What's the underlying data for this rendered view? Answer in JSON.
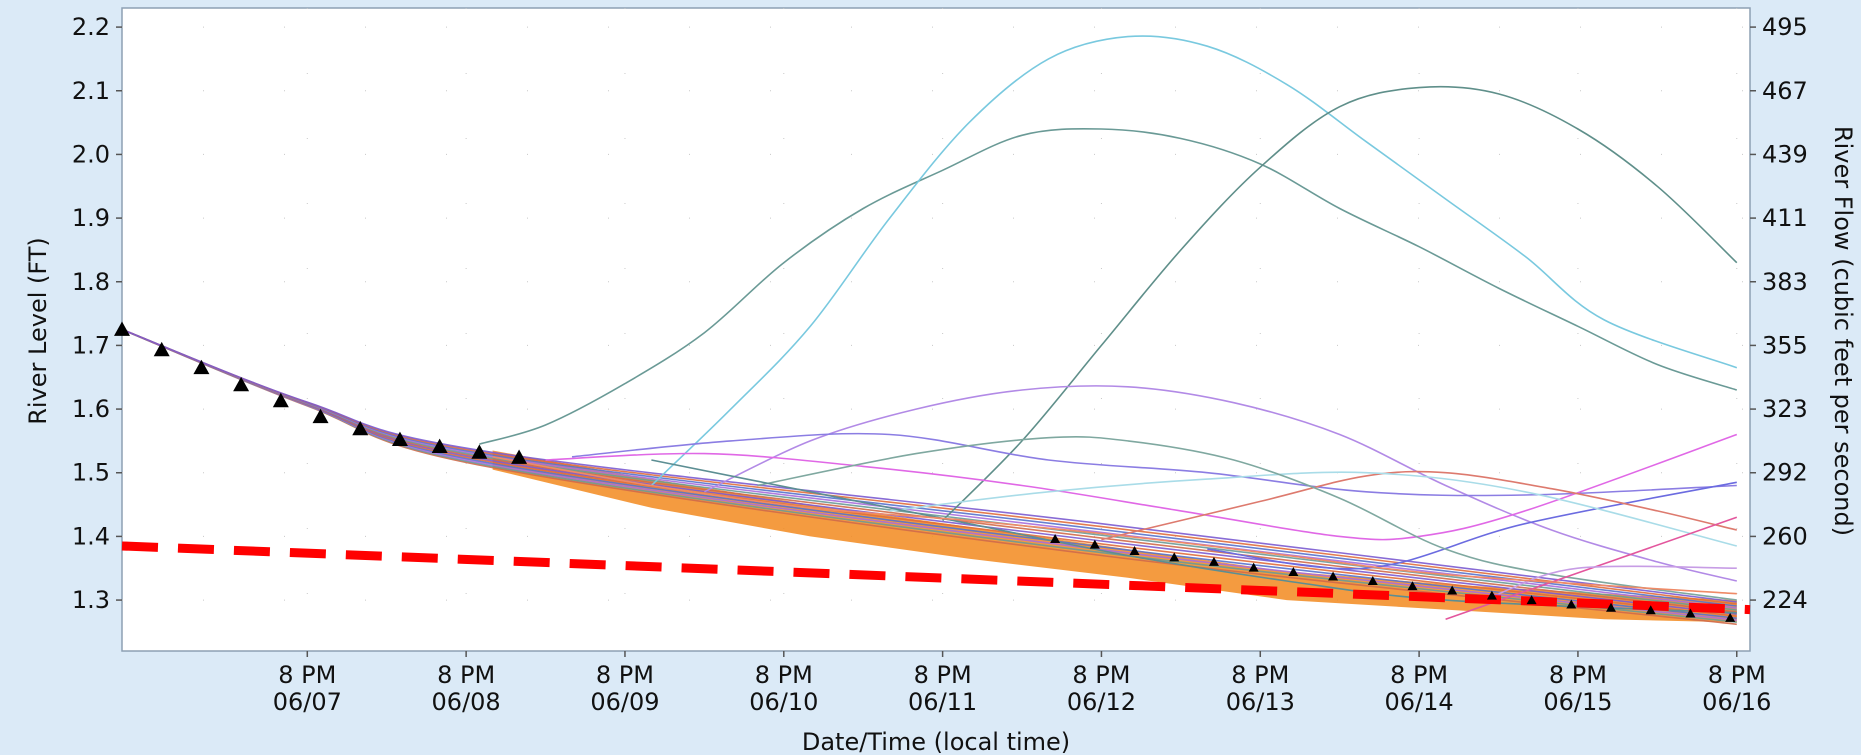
{
  "chart_data": {
    "type": "line",
    "xlabel": "Date/Time (local time)",
    "ylabel_left": "River Level (FT)",
    "ylabel_right": "River Flow (cubic feet per second)",
    "xlim": [
      "2020-06-06T16:00",
      "2020-06-16T22:00"
    ],
    "ylim": [
      1.22,
      2.23
    ],
    "x_ticks": [
      {
        "x": "2020-06-07T20:00",
        "time": "8 PM",
        "date": "06/07"
      },
      {
        "x": "2020-06-08T20:00",
        "time": "8 PM",
        "date": "06/08"
      },
      {
        "x": "2020-06-09T20:00",
        "time": "8 PM",
        "date": "06/09"
      },
      {
        "x": "2020-06-10T20:00",
        "time": "8 PM",
        "date": "06/10"
      },
      {
        "x": "2020-06-11T20:00",
        "time": "8 PM",
        "date": "06/11"
      },
      {
        "x": "2020-06-12T20:00",
        "time": "8 PM",
        "date": "06/12"
      },
      {
        "x": "2020-06-13T20:00",
        "time": "8 PM",
        "date": "06/13"
      },
      {
        "x": "2020-06-14T20:00",
        "time": "8 PM",
        "date": "06/14"
      },
      {
        "x": "2020-06-15T20:00",
        "time": "8 PM",
        "date": "06/15"
      },
      {
        "x": "2020-06-16T20:00",
        "time": "8 PM",
        "date": "06/16"
      }
    ],
    "y_ticks_left": [
      "1.3",
      "1.4",
      "1.5",
      "1.6",
      "1.7",
      "1.8",
      "1.9",
      "2.0",
      "2.1",
      "2.2"
    ],
    "y_ticks_right": [
      {
        "level": 1.3,
        "label": "224"
      },
      {
        "level": 1.4,
        "label": "260"
      },
      {
        "level": 1.5,
        "label": "292"
      },
      {
        "level": 1.6,
        "label": "323"
      },
      {
        "level": 1.7,
        "label": "355"
      },
      {
        "level": 1.8,
        "label": "383"
      },
      {
        "level": 1.9,
        "label": "411"
      },
      {
        "level": 2.0,
        "label": "439"
      },
      {
        "level": 2.1,
        "label": "467"
      },
      {
        "level": 2.2,
        "label": "495"
      }
    ],
    "grid": "dotted",
    "threshold": {
      "color": "#ff0000",
      "style": "dashed",
      "points": [
        [
          "2020-06-06T16:00",
          1.385
        ],
        [
          "2020-06-16T22:00",
          1.285
        ]
      ]
    },
    "band": {
      "color": "#f2891f",
      "upper": [
        [
          "2020-06-09T00:00",
          1.535
        ],
        [
          "2020-06-10T00:00",
          1.49
        ],
        [
          "2020-06-11T00:00",
          1.45
        ],
        [
          "2020-06-12T00:00",
          1.415
        ],
        [
          "2020-06-13T00:00",
          1.38
        ],
        [
          "2020-06-14T00:00",
          1.345
        ],
        [
          "2020-06-15T00:00",
          1.325
        ],
        [
          "2020-06-16T00:00",
          1.31
        ],
        [
          "2020-06-16T20:00",
          1.3
        ]
      ],
      "lower": [
        [
          "2020-06-16T20:00",
          1.265
        ],
        [
          "2020-06-16T00:00",
          1.27
        ],
        [
          "2020-06-15T00:00",
          1.285
        ],
        [
          "2020-06-14T00:00",
          1.3
        ],
        [
          "2020-06-13T00:00",
          1.335
        ],
        [
          "2020-06-12T00:00",
          1.365
        ],
        [
          "2020-06-11T00:00",
          1.4
        ],
        [
          "2020-06-10T00:00",
          1.445
        ],
        [
          "2020-06-09T00:00",
          1.505
        ]
      ]
    },
    "observed": {
      "marker": "triangle",
      "color": "#000000",
      "points": [
        [
          "2020-06-06T16:00",
          1.725
        ],
        [
          "2020-06-06T22:00",
          1.693
        ],
        [
          "2020-06-07T04:00",
          1.665
        ],
        [
          "2020-06-07T10:00",
          1.638
        ],
        [
          "2020-06-07T16:00",
          1.613
        ],
        [
          "2020-06-07T22:00",
          1.588
        ],
        [
          "2020-06-08T04:00",
          1.569
        ],
        [
          "2020-06-08T10:00",
          1.552
        ],
        [
          "2020-06-08T16:00",
          1.541
        ],
        [
          "2020-06-08T22:00",
          1.532
        ],
        [
          "2020-06-09T04:00",
          1.524
        ],
        [
          "2020-06-12T13:00",
          1.396
        ],
        [
          "2020-06-12T19:00",
          1.387
        ],
        [
          "2020-06-13T01:00",
          1.377
        ],
        [
          "2020-06-13T07:00",
          1.367
        ],
        [
          "2020-06-13T13:00",
          1.36
        ],
        [
          "2020-06-13T19:00",
          1.351
        ],
        [
          "2020-06-14T01:00",
          1.344
        ],
        [
          "2020-06-14T07:00",
          1.337
        ],
        [
          "2020-06-14T13:00",
          1.33
        ],
        [
          "2020-06-14T19:00",
          1.322
        ],
        [
          "2020-06-15T01:00",
          1.315
        ],
        [
          "2020-06-15T07:00",
          1.307
        ],
        [
          "2020-06-15T13:00",
          1.3
        ],
        [
          "2020-06-15T19:00",
          1.293
        ],
        [
          "2020-06-16T01:00",
          1.288
        ],
        [
          "2020-06-16T07:00",
          1.284
        ],
        [
          "2020-06-16T13:00",
          1.279
        ],
        [
          "2020-06-16T19:00",
          1.272
        ]
      ]
    },
    "series": [
      {
        "color": "#6a9a96",
        "points": [
          [
            "2020-06-08T22:00",
            1.545
          ],
          [
            "2020-06-09T08:00",
            1.575
          ],
          [
            "2020-06-09T20:00",
            1.64
          ],
          [
            "2020-06-10T08:00",
            1.72
          ],
          [
            "2020-06-10T20:00",
            1.83
          ],
          [
            "2020-06-11T08:00",
            1.915
          ],
          [
            "2020-06-11T20:00",
            1.975
          ],
          [
            "2020-06-12T08:00",
            2.03
          ],
          [
            "2020-06-12T20:00",
            2.04
          ],
          [
            "2020-06-13T08:00",
            2.025
          ],
          [
            "2020-06-13T20:00",
            1.985
          ],
          [
            "2020-06-14T08:00",
            1.915
          ],
          [
            "2020-06-14T20:00",
            1.855
          ],
          [
            "2020-06-15T08:00",
            1.79
          ],
          [
            "2020-06-15T20:00",
            1.73
          ],
          [
            "2020-06-16T08:00",
            1.67
          ],
          [
            "2020-06-16T20:00",
            1.63
          ]
        ]
      },
      {
        "color": "#79c9df",
        "points": [
          [
            "2020-06-10T00:00",
            1.48
          ],
          [
            "2020-06-10T12:00",
            1.6
          ],
          [
            "2020-06-11T00:00",
            1.73
          ],
          [
            "2020-06-11T12:00",
            1.9
          ],
          [
            "2020-06-12T00:00",
            2.05
          ],
          [
            "2020-06-12T12:00",
            2.15
          ],
          [
            "2020-06-13T00:00",
            2.185
          ],
          [
            "2020-06-13T12:00",
            2.17
          ],
          [
            "2020-06-14T00:00",
            2.11
          ],
          [
            "2020-06-14T12:00",
            2.02
          ],
          [
            "2020-06-15T00:00",
            1.93
          ],
          [
            "2020-06-15T12:00",
            1.84
          ],
          [
            "2020-06-16T00:00",
            1.74
          ],
          [
            "2020-06-16T20:00",
            1.665
          ]
        ]
      },
      {
        "color": "#5f8f8a",
        "points": [
          [
            "2020-06-11T20:00",
            1.425
          ],
          [
            "2020-06-12T08:00",
            1.55
          ],
          [
            "2020-06-12T20:00",
            1.7
          ],
          [
            "2020-06-13T08:00",
            1.85
          ],
          [
            "2020-06-13T20:00",
            1.98
          ],
          [
            "2020-06-14T08:00",
            2.075
          ],
          [
            "2020-06-14T20:00",
            2.105
          ],
          [
            "2020-06-15T08:00",
            2.095
          ],
          [
            "2020-06-15T20:00",
            2.04
          ],
          [
            "2020-06-16T08:00",
            1.95
          ],
          [
            "2020-06-16T20:00",
            1.83
          ]
        ]
      },
      {
        "color": "#b28ae6",
        "points": [
          [
            "2020-06-10T08:00",
            1.47
          ],
          [
            "2020-06-11T00:00",
            1.55
          ],
          [
            "2020-06-11T16:00",
            1.6
          ],
          [
            "2020-06-12T08:00",
            1.63
          ],
          [
            "2020-06-13T00:00",
            1.635
          ],
          [
            "2020-06-13T16:00",
            1.61
          ],
          [
            "2020-06-14T08:00",
            1.56
          ],
          [
            "2020-06-15T00:00",
            1.48
          ],
          [
            "2020-06-15T16:00",
            1.41
          ],
          [
            "2020-06-16T08:00",
            1.36
          ],
          [
            "2020-06-16T20:00",
            1.33
          ]
        ]
      },
      {
        "color": "#8b7de3",
        "points": [
          [
            "2020-06-09T12:00",
            1.525
          ],
          [
            "2020-06-10T12:00",
            1.55
          ],
          [
            "2020-06-11T12:00",
            1.56
          ],
          [
            "2020-06-12T12:00",
            1.52
          ],
          [
            "2020-06-13T12:00",
            1.5
          ],
          [
            "2020-06-14T12:00",
            1.47
          ],
          [
            "2020-06-15T12:00",
            1.465
          ],
          [
            "2020-06-16T20:00",
            1.48
          ]
        ]
      },
      {
        "color": "#6b6be0",
        "points": [
          [
            "2020-06-13T12:00",
            1.38
          ],
          [
            "2020-06-14T12:00",
            1.35
          ],
          [
            "2020-06-15T12:00",
            1.42
          ],
          [
            "2020-06-16T20:00",
            1.485
          ]
        ]
      },
      {
        "color": "#e068e6",
        "points": [
          [
            "2020-06-09T08:00",
            1.52
          ],
          [
            "2020-06-10T08:00",
            1.53
          ],
          [
            "2020-06-11T08:00",
            1.51
          ],
          [
            "2020-06-12T08:00",
            1.48
          ],
          [
            "2020-06-13T08:00",
            1.44
          ],
          [
            "2020-06-14T08:00",
            1.4
          ],
          [
            "2020-06-14T20:00",
            1.4
          ],
          [
            "2020-06-15T12:00",
            1.44
          ],
          [
            "2020-06-16T20:00",
            1.56
          ]
        ]
      },
      {
        "color": "#dd7a6e",
        "points": [
          [
            "2020-06-12T20:00",
            1.395
          ],
          [
            "2020-06-13T20:00",
            1.455
          ],
          [
            "2020-06-14T12:00",
            1.495
          ],
          [
            "2020-06-15T00:00",
            1.5
          ],
          [
            "2020-06-15T16:00",
            1.475
          ],
          [
            "2020-06-16T08:00",
            1.44
          ],
          [
            "2020-06-16T20:00",
            1.41
          ]
        ]
      },
      {
        "color": "#a9dce8",
        "points": [
          [
            "2020-06-11T12:00",
            1.44
          ],
          [
            "2020-06-12T12:00",
            1.47
          ],
          [
            "2020-06-13T12:00",
            1.49
          ],
          [
            "2020-06-14T12:00",
            1.5
          ],
          [
            "2020-06-15T12:00",
            1.47
          ],
          [
            "2020-06-16T20:00",
            1.385
          ]
        ]
      },
      {
        "color": "#7fa8a0",
        "points": [
          [
            "2020-06-10T16:00",
            1.48
          ],
          [
            "2020-06-11T16:00",
            1.53
          ],
          [
            "2020-06-12T12:00",
            1.555
          ],
          [
            "2020-06-13T00:00",
            1.55
          ],
          [
            "2020-06-13T16:00",
            1.52
          ],
          [
            "2020-06-14T08:00",
            1.46
          ],
          [
            "2020-06-15T00:00",
            1.38
          ],
          [
            "2020-06-15T16:00",
            1.34
          ],
          [
            "2020-06-16T20:00",
            1.3
          ]
        ]
      },
      {
        "color": "#e3569d",
        "points": [
          [
            "2020-06-15T00:00",
            1.27
          ],
          [
            "2020-06-16T20:00",
            1.43
          ]
        ]
      },
      {
        "color": "#c79de5",
        "points": [
          [
            "2020-06-15T08:00",
            1.31
          ],
          [
            "2020-06-15T20:00",
            1.35
          ],
          [
            "2020-06-16T20:00",
            1.35
          ]
        ]
      },
      {
        "color": "#5c8e93",
        "points": [
          [
            "2020-06-10T00:00",
            1.52
          ],
          [
            "2020-06-11T00:00",
            1.47
          ],
          [
            "2020-06-12T00:00",
            1.42
          ],
          [
            "2020-06-13T00:00",
            1.37
          ],
          [
            "2020-06-14T00:00",
            1.33
          ],
          [
            "2020-06-15T00:00",
            1.3
          ],
          [
            "2020-06-16T20:00",
            1.28
          ]
        ]
      },
      {
        "color": "#ef8a67",
        "points": [
          [
            "2020-06-09T00:00",
            1.525
          ],
          [
            "2020-06-10T00:00",
            1.48
          ],
          [
            "2020-06-11T00:00",
            1.445
          ],
          [
            "2020-06-12T00:00",
            1.425
          ],
          [
            "2020-06-13T00:00",
            1.4
          ],
          [
            "2020-06-14T00:00",
            1.37
          ],
          [
            "2020-06-15T00:00",
            1.34
          ],
          [
            "2020-06-16T20:00",
            1.31
          ]
        ]
      }
    ],
    "fan": {
      "colors": [
        "#d06a4a",
        "#6a9a96",
        "#a76ddc",
        "#5672cc",
        "#e06d3c",
        "#7b5bd0"
      ],
      "start": [
        "2020-06-06T16:00",
        1.725
      ],
      "mid": [
        "2020-06-09T00:00",
        1.52
      ],
      "end": [
        "2020-06-16T20:00",
        1.262
      ]
    }
  }
}
